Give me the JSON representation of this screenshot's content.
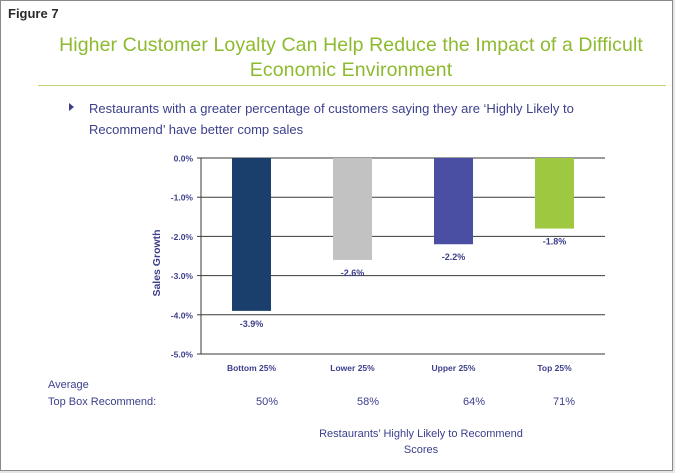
{
  "figure_label": "Figure 7",
  "title": "Higher Customer Loyalty Can Help Reduce the Impact of a Difficult Economic Environment",
  "bullet": "Restaurants with a greater percentage of customers saying they are ‘Highly Likely to Recommend’ have better comp sales",
  "colors": {
    "title": "#8dba2e",
    "text": "#3c3f8c"
  },
  "chart_data": {
    "type": "bar",
    "ylabel": "Sales Growth",
    "ylim": [
      -5.0,
      0.0
    ],
    "yticks": [
      "0.0%",
      "-1.0%",
      "-2.0%",
      "-3.0%",
      "-4.0%",
      "-5.0%"
    ],
    "grid": true,
    "categories": [
      "Bottom 25%",
      "Lower 25%",
      "Upper 25%",
      "Top 25%"
    ],
    "values": [
      -3.9,
      -2.6,
      -2.2,
      -1.8
    ],
    "value_labels": [
      "-3.9%",
      "-2.6%",
      "-2.2%",
      "-1.8%"
    ],
    "bar_colors": [
      "#1a3f6c",
      "#c2c2c2",
      "#4a4fa3",
      "#9ec840"
    ],
    "xlabel": "Restaurants’ Highly Likely to Recommend Scores"
  },
  "top_box": {
    "label_line1": "Average",
    "label_line2": "Top Box  Recommend:",
    "values": [
      "50%",
      "58%",
      "64%",
      "71%"
    ]
  },
  "footer": {
    "line1": "Restaurants’ Highly Likely to Recommend",
    "line2": "Scores"
  }
}
